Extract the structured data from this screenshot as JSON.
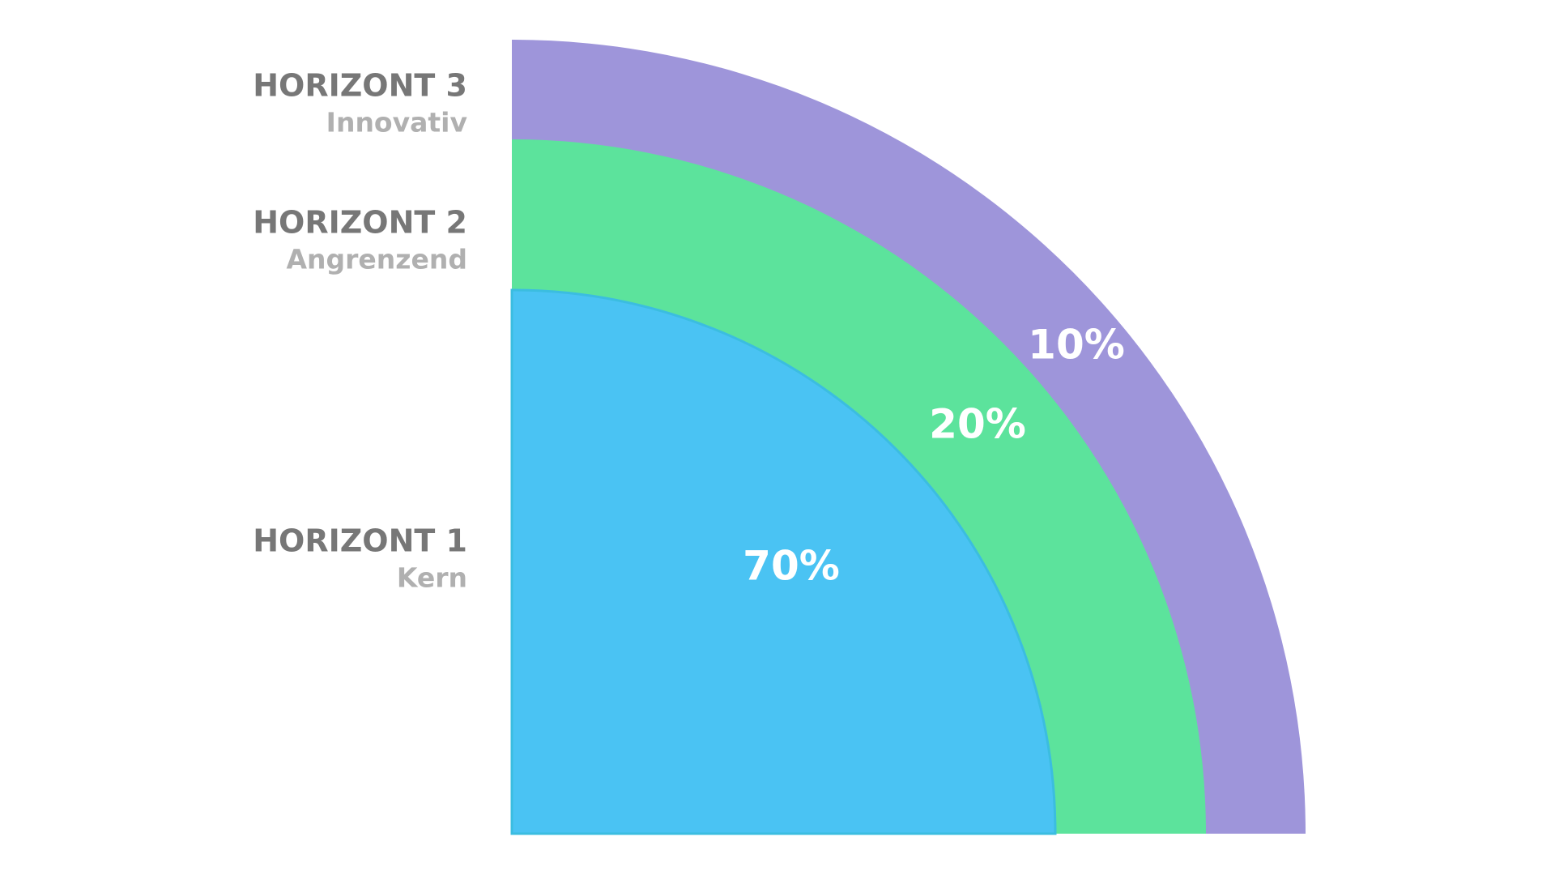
{
  "horizons": [
    {
      "title": "HORIZONT 1",
      "subtitle": "Kern",
      "share": "70%"
    },
    {
      "title": "HORIZONT 2",
      "subtitle": "Angrenzend",
      "share": "20%"
    },
    {
      "title": "HORIZONT 3",
      "subtitle": "Innovativ",
      "share": "10%"
    }
  ]
}
